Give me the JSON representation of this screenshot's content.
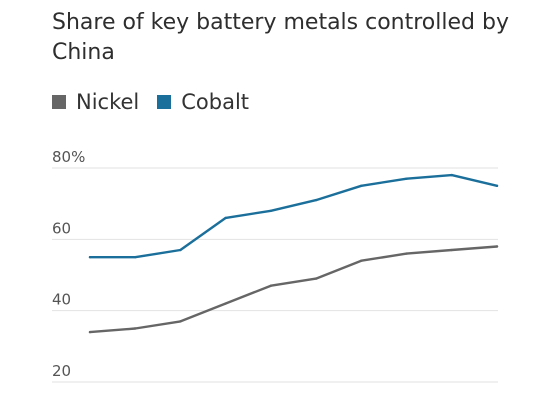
{
  "chart_data": {
    "type": "line",
    "title": "Share of key battery metals controlled by China",
    "xlabel": "",
    "ylabel": "",
    "ylim": [
      20,
      80
    ],
    "x": [
      0,
      1,
      2,
      3,
      4,
      5,
      6,
      7,
      8,
      9
    ],
    "series": [
      {
        "name": "Nickel",
        "color": "#666666",
        "values": [
          34,
          35,
          37,
          42,
          47,
          49,
          54,
          56,
          57,
          58
        ]
      },
      {
        "name": "Cobalt",
        "color": "#1b6f9b",
        "values": [
          55,
          55,
          57,
          66,
          68,
          71,
          75,
          77,
          78,
          75
        ]
      }
    ],
    "y_ticks": [
      {
        "value": 20,
        "label": "20"
      },
      {
        "value": 40,
        "label": "40"
      },
      {
        "value": 60,
        "label": "60"
      },
      {
        "value": 80,
        "label": "80%"
      }
    ],
    "grid": true,
    "legend_position": "top-left"
  }
}
